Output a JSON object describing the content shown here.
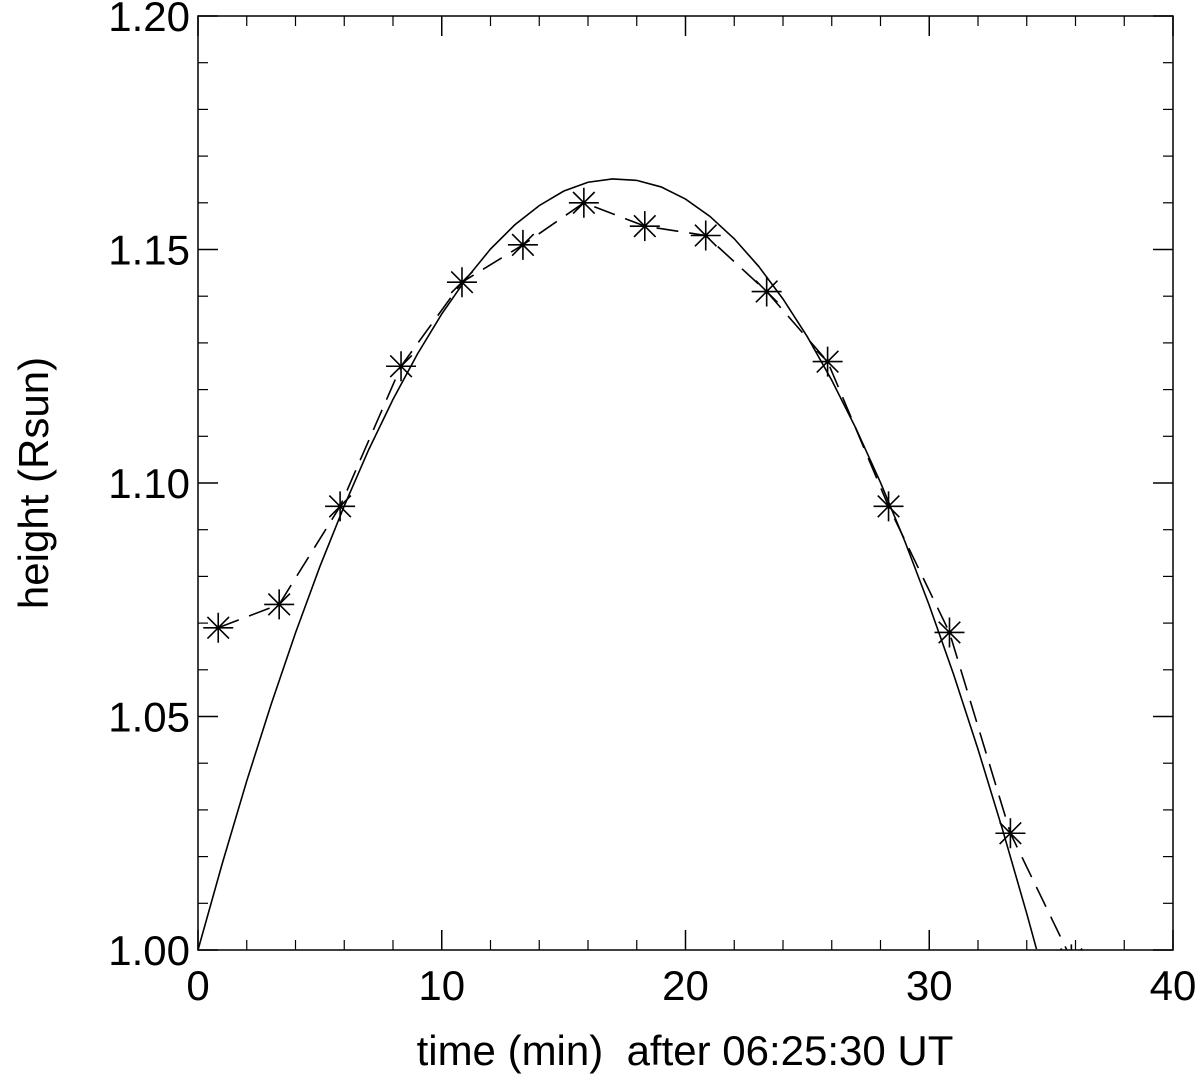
{
  "chart_data": {
    "type": "line",
    "xlabel": "time (min)  after 06:25:30 UT",
    "ylabel": "height (Rsun)",
    "xlim": [
      0,
      40
    ],
    "ylim": [
      1.0,
      1.2
    ],
    "xticks": [
      0,
      10,
      20,
      30,
      40
    ],
    "yticks": [
      {
        "value": 1.0,
        "label": "1.00"
      },
      {
        "value": 1.05,
        "label": "1.05"
      },
      {
        "value": 1.1,
        "label": "1.10"
      },
      {
        "value": 1.15,
        "label": "1.15"
      },
      {
        "value": 1.2,
        "label": "1.20"
      }
    ],
    "series": [
      {
        "color": "#000000",
        "linestyle": "dashed",
        "marker": "asterisk",
        "x": [
          0.83,
          3.33,
          5.83,
          8.33,
          10.83,
          13.33,
          15.83,
          18.33,
          20.83,
          23.33,
          25.83,
          28.33,
          30.83,
          33.33,
          35.83
        ],
        "values": [
          1.069,
          1.074,
          1.095,
          1.125,
          1.143,
          1.151,
          1.16,
          1.155,
          1.153,
          1.141,
          1.126,
          1.095,
          1.068,
          1.025,
          0.998
        ]
      },
      {
        "color": "#000000",
        "linestyle": "solid",
        "x": [
          0,
          1,
          2,
          3,
          4,
          5,
          6,
          7,
          8,
          9,
          10,
          11,
          12,
          13,
          14,
          15,
          16,
          17,
          18,
          19,
          20,
          21,
          22,
          23,
          24,
          25,
          26,
          27,
          28,
          29,
          30,
          31,
          32,
          33,
          34,
          34.4
        ],
        "values": [
          1.0,
          1.0186,
          1.0362,
          1.0526,
          1.0679,
          1.0821,
          1.0951,
          1.1071,
          1.1179,
          1.1276,
          1.1362,
          1.1437,
          1.1501,
          1.1553,
          1.1594,
          1.1625,
          1.1644,
          1.1651,
          1.1648,
          1.1634,
          1.1608,
          1.1571,
          1.1523,
          1.1464,
          1.1394,
          1.1313,
          1.122,
          1.1116,
          1.1001,
          1.0875,
          1.0738,
          1.059,
          1.043,
          1.0259,
          1.0078,
          1.0002
        ]
      }
    ]
  }
}
